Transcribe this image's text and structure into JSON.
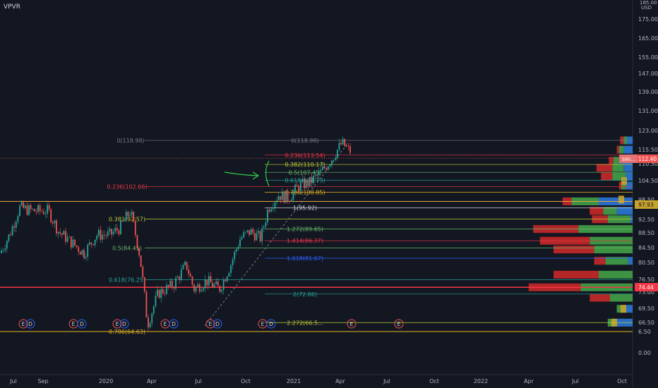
{
  "symbol": "VPVR",
  "currency_label": "USD",
  "top_tick_label": "185.00",
  "price_axis": {
    "ticks": [
      "175.00",
      "165.00",
      "155.00",
      "147.00",
      "139.00",
      "131.00",
      "123.00",
      "115.50",
      "110.50",
      "104.50",
      "98.50",
      "92.50",
      "88.50",
      "84.50",
      "80.50",
      "76.50",
      "73.00",
      "69.50",
      "66.50",
      "6.50",
      "0.00"
    ],
    "badges": [
      {
        "text": "SIRI...",
        "color": "#e57373"
      },
      {
        "text": "112.40",
        "color": "#ef5350"
      },
      {
        "text": "97.93",
        "color": "#c7a22c"
      },
      {
        "text": "74.44",
        "color": "#f23645"
      }
    ]
  },
  "time_axis": [
    "Jul",
    "Sep",
    "2020",
    "Apr",
    "Jul",
    "Oct",
    "2021",
    "Apr",
    "Jul",
    "Oct",
    "2022",
    "Apr",
    "Jul",
    "Oct"
  ],
  "fib_retracement_upper": {
    "levels": [
      {
        "label": "0(118.98)",
        "left_label": "0(118.98)",
        "color": "#787b86",
        "price": 118.98
      },
      {
        "label": "0.236(113.54)",
        "color": "#f23645",
        "price": 113.54
      },
      {
        "label": "0.382(110.17)",
        "color": "#c0ca33",
        "price": 110.17
      },
      {
        "label": "0.5(107.45)",
        "color": "#66bb6a",
        "price": 107.45
      },
      {
        "label": "0.618(104.73)",
        "color": "#26a69a",
        "price": 104.73
      },
      {
        "label": "0.786(100.85)",
        "color": "#e6b422",
        "price": 100.85
      },
      {
        "label": "1(95.92)",
        "color": "#d1d4dc",
        "price": 95.92
      },
      {
        "label": "1.272(89.65)",
        "color": "#66bb6a",
        "price": 89.65
      },
      {
        "label": "1.414(86.37)",
        "color": "#f23645",
        "price": 86.37
      },
      {
        "label": "1.618(81.67)",
        "color": "#2962ff",
        "price": 81.67
      },
      {
        "label": "2(72.86)",
        "color": "#26a69a",
        "price": 72.86
      },
      {
        "label": "2.272(66.5...",
        "color": "#c0ca33",
        "price": 66.5
      }
    ]
  },
  "fib_retracement_lower": {
    "levels": [
      {
        "label": "0.236(102.66)",
        "color": "#f23645",
        "price": 102.66
      },
      {
        "label": "0.382(92.57)",
        "color": "#c0ca33",
        "price": 92.57
      },
      {
        "label": "0.5(84.41)",
        "color": "#66bb6a",
        "price": 84.41
      },
      {
        "label": "0.618(76.25)",
        "color": "#26a69a",
        "price": 76.25
      },
      {
        "label": "0.786(64.63)",
        "color": "#e6b422",
        "price": 64.63
      }
    ]
  },
  "horizontal_lines": [
    {
      "price": 97.93,
      "color": "#e6a23c"
    },
    {
      "price": 74.44,
      "color": "#f23645"
    },
    {
      "price": 64.63,
      "color": "#e6b422"
    }
  ],
  "earnings_markers": [
    {
      "text": "E"
    },
    {
      "text": "D"
    },
    {
      "text": "E"
    },
    {
      "text": "D"
    },
    {
      "text": "E"
    },
    {
      "text": "D"
    },
    {
      "text": "E"
    },
    {
      "text": "D"
    },
    {
      "text": "E"
    },
    {
      "text": "D"
    },
    {
      "text": "E"
    },
    {
      "text": "D"
    },
    {
      "text": "E"
    },
    {
      "text": "E"
    }
  ],
  "chart_data": {
    "type": "candlestick",
    "y_scale": "log",
    "price_range": [
      62,
      130
    ],
    "current_price": 112.4,
    "close_path": [
      {
        "d": "2019-06-01",
        "p": 83
      },
      {
        "d": "2019-06-20",
        "p": 88
      },
      {
        "d": "2019-07-10",
        "p": 96
      },
      {
        "d": "2019-08-05",
        "p": 95
      },
      {
        "d": "2019-09-05",
        "p": 95
      },
      {
        "d": "2019-09-25",
        "p": 89
      },
      {
        "d": "2019-10-20",
        "p": 86
      },
      {
        "d": "2019-11-15",
        "p": 83
      },
      {
        "d": "2019-12-10",
        "p": 88
      },
      {
        "d": "2020-01-05",
        "p": 88
      },
      {
        "d": "2020-01-25",
        "p": 90
      },
      {
        "d": "2020-02-15",
        "p": 95
      },
      {
        "d": "2020-03-05",
        "p": 82
      },
      {
        "d": "2020-03-20",
        "p": 66
      },
      {
        "d": "2020-04-10",
        "p": 73
      },
      {
        "d": "2020-05-10",
        "p": 75
      },
      {
        "d": "2020-06-05",
        "p": 80
      },
      {
        "d": "2020-06-20",
        "p": 74
      },
      {
        "d": "2020-07-15",
        "p": 76
      },
      {
        "d": "2020-08-10",
        "p": 74
      },
      {
        "d": "2020-09-01",
        "p": 80
      },
      {
        "d": "2020-09-20",
        "p": 87
      },
      {
        "d": "2020-10-10",
        "p": 89
      },
      {
        "d": "2020-10-31",
        "p": 87
      },
      {
        "d": "2020-11-15",
        "p": 96
      },
      {
        "d": "2020-12-05",
        "p": 100
      },
      {
        "d": "2020-12-25",
        "p": 99
      },
      {
        "d": "2021-01-15",
        "p": 103
      },
      {
        "d": "2021-02-05",
        "p": 104
      },
      {
        "d": "2021-02-25",
        "p": 107
      },
      {
        "d": "2021-03-20",
        "p": 112
      },
      {
        "d": "2021-04-10",
        "p": 118
      },
      {
        "d": "2021-04-25",
        "p": 115
      }
    ],
    "volume_profile": [
      {
        "price": 118.98,
        "buy": 3,
        "sell": 3,
        "alt": 5
      },
      {
        "price": 115.5,
        "buy": 4,
        "sell": 2,
        "alt": 8
      },
      {
        "price": 111.5,
        "buy": 5,
        "sell": 4,
        "alt": 12
      },
      {
        "price": 109.0,
        "buy": 10,
        "sell": 14,
        "alt": 8
      },
      {
        "price": 106.0,
        "buy": 12,
        "sell": 10,
        "alt": 6
      },
      {
        "price": 103.0,
        "buy": 4,
        "sell": 2,
        "alt": 6
      },
      {
        "price": 97.93,
        "buy": 24,
        "sell": 8,
        "alt": 30
      },
      {
        "price": 95.0,
        "buy": 12,
        "sell": 12,
        "alt": 14
      },
      {
        "price": 92.5,
        "buy": 20,
        "sell": 14,
        "alt": 2
      },
      {
        "price": 89.65,
        "buy": 48,
        "sell": 40,
        "alt": 0
      },
      {
        "price": 86.37,
        "buy": 38,
        "sell": 44,
        "alt": 0
      },
      {
        "price": 84.0,
        "buy": 34,
        "sell": 36,
        "alt": 0
      },
      {
        "price": 81.0,
        "buy": 20,
        "sell": 10,
        "alt": 4
      },
      {
        "price": 77.5,
        "buy": 30,
        "sell": 40,
        "alt": 0
      },
      {
        "price": 74.44,
        "buy": 46,
        "sell": 46,
        "alt": 0
      },
      {
        "price": 72.0,
        "buy": 20,
        "sell": 18,
        "alt": 0
      },
      {
        "price": 69.5,
        "buy": 8,
        "sell": 0,
        "alt": 6
      },
      {
        "price": 66.5,
        "buy": 6,
        "sell": 0,
        "alt": 16
      }
    ]
  }
}
